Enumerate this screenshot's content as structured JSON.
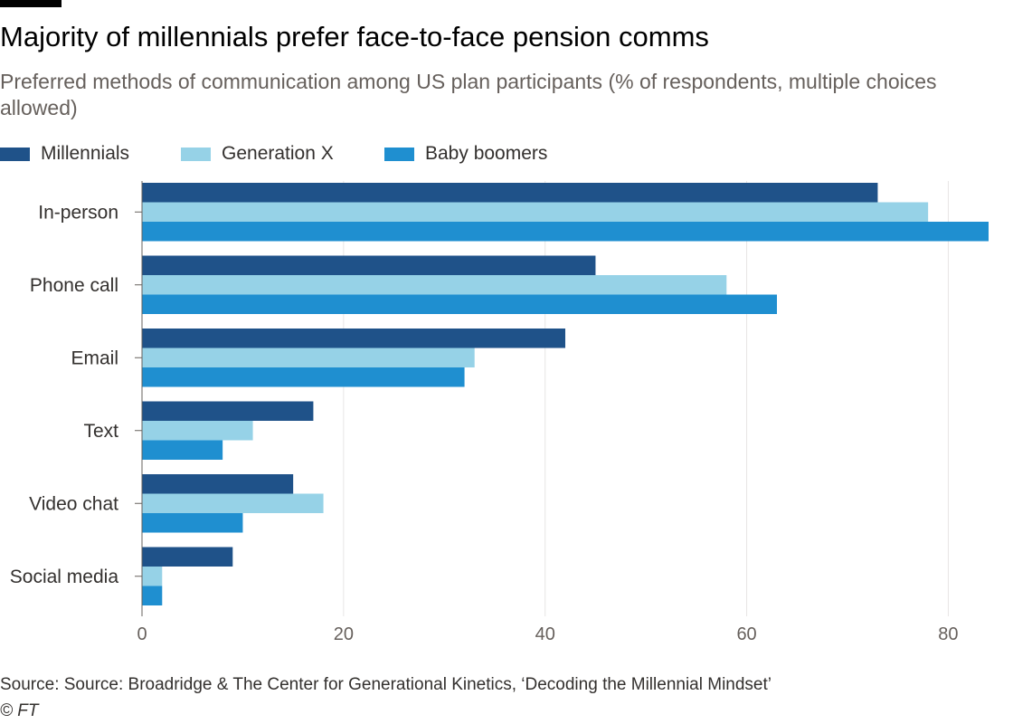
{
  "title": "Majority of millennials prefer face-to-face pension comms",
  "subtitle": "Preferred methods of communication among US plan participants (% of respondents, multiple choices allowed)",
  "source": "Source: Source: Broadridge & The Center for Generational Kinetics, ‘Decoding the Millennial Mindset’",
  "credit": "© FT",
  "chart_data": {
    "type": "bar",
    "orientation": "horizontal",
    "categories": [
      "In-person",
      "Phone call",
      "Email",
      "Text",
      "Video chat",
      "Social media"
    ],
    "series": [
      {
        "name": "Millennials",
        "color": "#1f5289",
        "values": [
          73,
          45,
          42,
          17,
          15,
          9
        ]
      },
      {
        "name": "Generation X",
        "color": "#96d2e7",
        "values": [
          78,
          58,
          33,
          11,
          18,
          2
        ]
      },
      {
        "name": "Baby boomers",
        "color": "#1f8fd0",
        "values": [
          84,
          63,
          32,
          8,
          10,
          2
        ]
      }
    ],
    "x_ticks": [
      0,
      20,
      40,
      60,
      80
    ],
    "xlim": [
      0,
      84
    ],
    "grid": true,
    "legend_position": "top-left"
  }
}
